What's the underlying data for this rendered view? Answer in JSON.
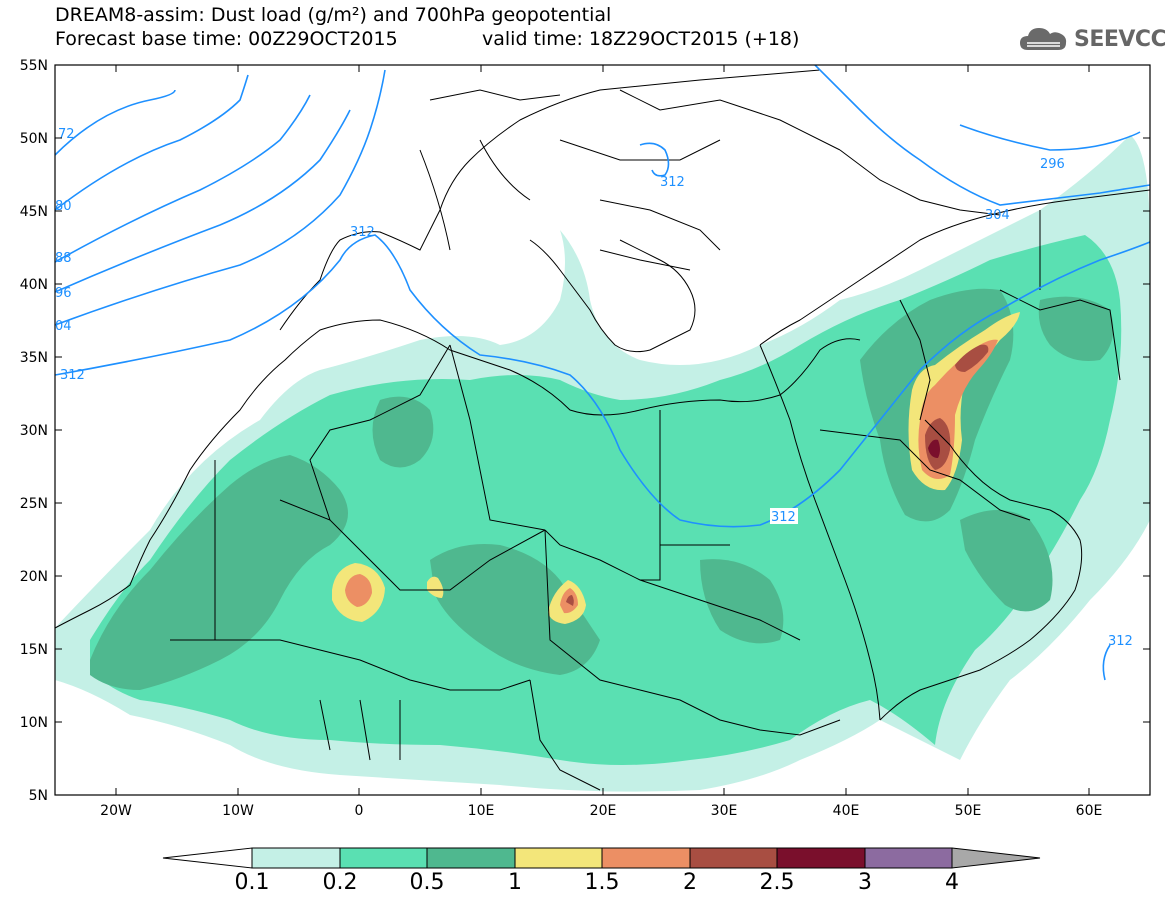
{
  "header": {
    "line1": "DREAM8-assim: Dust load (g/m²) and 700hPa geopotential",
    "line2_left": "Forecast base time: 00Z29OCT2015",
    "line2_right": "valid time: 18Z29OCT2015 (+18)",
    "brand": "SEEVCCC"
  },
  "axes": {
    "lat_labels": [
      "55N",
      "50N",
      "45N",
      "40N",
      "35N",
      "30N",
      "25N",
      "20N",
      "15N",
      "10N",
      "5N"
    ],
    "lon_labels": [
      "20W",
      "10W",
      "0",
      "10E",
      "20E",
      "30E",
      "40E",
      "50E",
      "60E"
    ]
  },
  "contour_labels": [
    "72",
    "80",
    "88",
    "96",
    "04",
    "312",
    "312",
    "312",
    "296",
    "304",
    "312",
    "312"
  ],
  "colorbar": {
    "ticks": [
      "0.1",
      "0.2",
      "0.5",
      "1",
      "1.5",
      "2",
      "2.5",
      "3",
      "4"
    ],
    "colors": [
      "#c4f0e6",
      "#5ae0b2",
      "#4fb88f",
      "#f3e67a",
      "#ec8f64",
      "#a84e42",
      "#7a0f2c",
      "#8c6ba0"
    ],
    "low_color": "#ffffff",
    "high_color": "#a8a8a8"
  },
  "colors": {
    "contour": "#1e90ff",
    "border": "#000000"
  }
}
